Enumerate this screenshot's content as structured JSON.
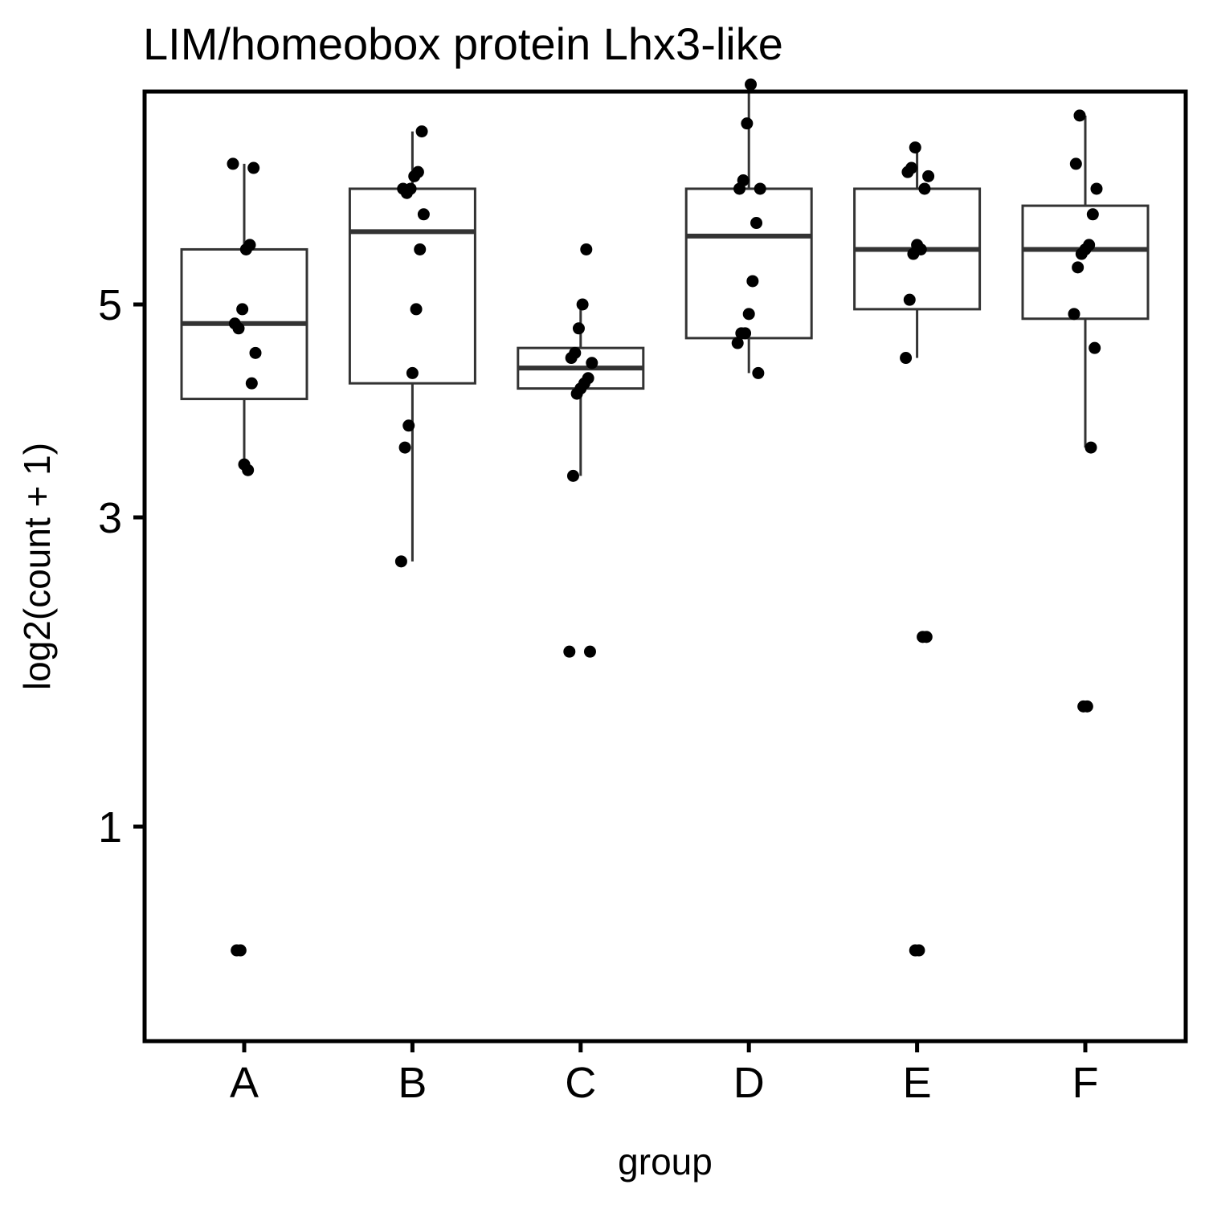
{
  "chart_data": {
    "type": "box",
    "title": "LIM/homeobox protein Lhx3-like",
    "xlabel": "group",
    "ylabel": "log2(count + 1)",
    "y_scale": "sqrt",
    "ylim": [
      0.5,
      7.3
    ],
    "y_ticks": [
      1,
      3,
      5
    ],
    "categories": [
      "A",
      "B",
      "C",
      "D",
      "E",
      "F"
    ],
    "boxes": [
      {
        "group": "A",
        "whisker_low": 3.4,
        "q1": 4.05,
        "median": 4.8,
        "q3": 5.6,
        "whisker_high": 6.6
      },
      {
        "group": "B",
        "whisker_low": 2.65,
        "q1": 4.2,
        "median": 5.8,
        "q3": 6.3,
        "whisker_high": 7.0
      },
      {
        "group": "C",
        "whisker_low": 3.35,
        "q1": 4.15,
        "median": 4.35,
        "q3": 4.55,
        "whisker_high": 5.0
      },
      {
        "group": "D",
        "whisker_low": 4.3,
        "q1": 4.65,
        "median": 5.75,
        "q3": 6.3,
        "whisker_high": 7.6
      },
      {
        "group": "E",
        "whisker_low": 4.45,
        "q1": 4.95,
        "median": 5.6,
        "q3": 6.3,
        "whisker_high": 6.8
      },
      {
        "group": "F",
        "whisker_low": 3.6,
        "q1": 4.85,
        "median": 5.6,
        "q3": 6.1,
        "whisker_high": 7.2
      }
    ],
    "points": {
      "A": [
        6.6,
        6.55,
        5.65,
        5.6,
        4.95,
        4.75,
        4.8,
        4.5,
        4.2,
        3.4,
        3.45,
        0.5,
        0.5
      ],
      "B": [
        7.0,
        6.5,
        6.45,
        6.3,
        6.25,
        6.3,
        6.0,
        5.6,
        4.95,
        4.3,
        3.8,
        3.6,
        2.65
      ],
      "C": [
        5.6,
        5.0,
        4.75,
        4.5,
        4.45,
        4.4,
        4.25,
        4.2,
        4.15,
        4.1,
        3.35,
        2.0,
        2.0
      ],
      "D": [
        7.6,
        7.1,
        6.4,
        6.3,
        6.3,
        5.9,
        5.25,
        4.9,
        4.7,
        4.7,
        4.6,
        4.3
      ],
      "E": [
        6.8,
        6.55,
        6.5,
        6.45,
        6.3,
        5.6,
        5.65,
        5.55,
        5.05,
        4.45,
        2.1,
        2.1,
        0.5,
        0.5
      ],
      "F": [
        7.2,
        6.6,
        6.3,
        6.0,
        5.65,
        5.6,
        5.55,
        5.4,
        4.9,
        4.55,
        3.6,
        1.65,
        1.65
      ]
    },
    "grid": false,
    "legend": "none",
    "colors": {
      "box_stroke": "#333333",
      "point": "#000000",
      "frame": "#000000",
      "background": "#ffffff"
    }
  }
}
